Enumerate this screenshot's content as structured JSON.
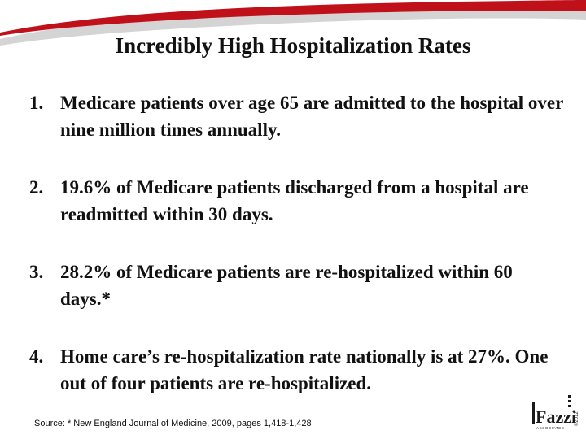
{
  "slide": {
    "title": "Incredibly High Hospitalization Rates",
    "points": [
      {
        "number": "1.",
        "text": "Medicare patients over age 65 are admitted to the hospital over nine million times annually."
      },
      {
        "number": "2.",
        "text": "19.6% of Medicare patients discharged from a hospital are readmitted within 30 days."
      },
      {
        "number": "3.",
        "text": "28.2% of Medicare patients are re-hospitalized within 60 days.*"
      },
      {
        "number": "4.",
        "text": "Home care’s re-hospitalization rate nationally is at 27%.  One out of four patients are re-hospitalized."
      }
    ],
    "source": "Source:  * New England Journal of Medicine, 2009, pages 1,418-1,428"
  },
  "logo": {
    "name": "Fazzi",
    "tagline": "ASSOCIATES",
    "year_mark": "©2012",
    "colors": {
      "swoosh_red": "#c0111b",
      "swoosh_gray": "#d4d4d4",
      "logo_dark": "#1a1a1a"
    }
  }
}
